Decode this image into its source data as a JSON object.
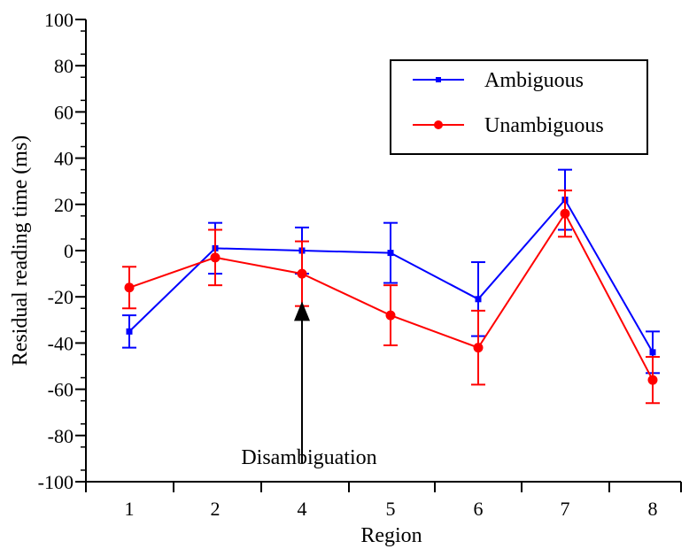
{
  "chart_data": {
    "type": "line",
    "title": "",
    "xlabel": "Region",
    "ylabel": "Residual reading time (ms)",
    "ylim": [
      -100,
      100
    ],
    "yticks": [
      "100",
      "80",
      "60",
      "40",
      "20",
      "0",
      "-20",
      "-40",
      "-60",
      "-80",
      "-100"
    ],
    "categories": [
      "1",
      "2",
      "4",
      "5",
      "6",
      "7",
      "8"
    ],
    "grid": false,
    "legend": "top-right",
    "series": [
      {
        "name": "Ambiguous",
        "color": "#0000ff",
        "marker": "square",
        "values": [
          -35,
          1,
          0,
          -1,
          -21,
          22,
          -44
        ],
        "error": [
          7,
          11,
          10,
          13,
          16,
          13,
          9
        ]
      },
      {
        "name": "Unambiguous",
        "color": "#ff0000",
        "marker": "circle",
        "values": [
          -16,
          -3,
          -10,
          -28,
          -42,
          16,
          -56
        ],
        "error": [
          9,
          12,
          14,
          13,
          16,
          10,
          10
        ]
      }
    ],
    "annotations": [
      {
        "text": "Disambiguation",
        "category": "4",
        "arrow_from_y": -92,
        "arrow_to_y": -22
      }
    ]
  }
}
